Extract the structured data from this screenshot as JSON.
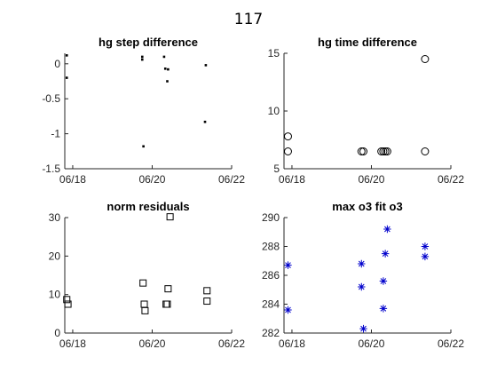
{
  "figure": {
    "suptitle": "117"
  },
  "chart_data": [
    {
      "type": "scatter",
      "title": "hg step difference",
      "xlabel": "",
      "ylabel": "",
      "x_axis": "date",
      "xlim": [
        "06/17.8",
        "06/22"
      ],
      "xticks": [
        [
          "06/18",
          18
        ],
        [
          "06/20",
          20
        ],
        [
          "06/22",
          22
        ]
      ],
      "ylim": [
        -1.5,
        0.15
      ],
      "yticks": [
        0,
        -0.5,
        -1,
        -1.5
      ],
      "ytick_labels": [
        "0",
        "-0.5",
        "-1",
        "-1.5"
      ],
      "grid": false,
      "marker": "point",
      "color": "#000000",
      "points": [
        [
          17.85,
          0.12
        ],
        [
          17.85,
          -0.2
        ],
        [
          19.75,
          0.1
        ],
        [
          19.75,
          0.06
        ],
        [
          19.78,
          -1.18
        ],
        [
          20.3,
          0.1
        ],
        [
          20.33,
          -0.07
        ],
        [
          20.4,
          -0.08
        ],
        [
          20.38,
          -0.25
        ],
        [
          21.35,
          -0.02
        ],
        [
          21.33,
          -0.83
        ]
      ]
    },
    {
      "type": "scatter",
      "title": "hg time difference",
      "xlabel": "",
      "ylabel": "",
      "x_axis": "date",
      "xlim": [
        17.8,
        22
      ],
      "xticks": [
        [
          "06/18",
          18
        ],
        [
          "06/20",
          20
        ],
        [
          "06/22",
          22
        ]
      ],
      "ylim": [
        5,
        15
      ],
      "yticks": [
        5,
        10,
        15
      ],
      "ytick_labels": [
        "5",
        "10",
        "15"
      ],
      "grid": false,
      "marker": "circle",
      "color": "#000000",
      "points": [
        [
          17.9,
          7.8
        ],
        [
          17.9,
          6.5
        ],
        [
          19.75,
          6.5
        ],
        [
          19.8,
          6.5
        ],
        [
          20.25,
          6.5
        ],
        [
          20.3,
          6.5
        ],
        [
          20.35,
          6.5
        ],
        [
          20.4,
          6.5
        ],
        [
          21.35,
          14.5
        ],
        [
          21.35,
          6.5
        ]
      ]
    },
    {
      "type": "scatter",
      "title": "norm residuals",
      "xlabel": "",
      "ylabel": "",
      "x_axis": "date",
      "xlim": [
        17.8,
        22
      ],
      "xticks": [
        [
          "06/18",
          18
        ],
        [
          "06/20",
          20
        ],
        [
          "06/22",
          22
        ]
      ],
      "ylim": [
        0,
        30
      ],
      "yticks": [
        0,
        10,
        20,
        30
      ],
      "ytick_labels": [
        "0",
        "10",
        "20",
        "30"
      ],
      "grid": false,
      "marker": "square",
      "color": "#000000",
      "points": [
        [
          17.85,
          8.7
        ],
        [
          17.88,
          7.5
        ],
        [
          19.77,
          13
        ],
        [
          19.8,
          7.5
        ],
        [
          19.82,
          5.8
        ],
        [
          20.35,
          7.5
        ],
        [
          20.38,
          7.5
        ],
        [
          20.4,
          11.5
        ],
        [
          20.45,
          30.2
        ],
        [
          21.38,
          11
        ],
        [
          21.38,
          8.3
        ]
      ]
    },
    {
      "type": "scatter",
      "title": "max o3 fit o3",
      "xlabel": "",
      "ylabel": "",
      "x_axis": "date",
      "xlim": [
        17.8,
        22
      ],
      "xticks": [
        [
          "06/18",
          18
        ],
        [
          "06/20",
          20
        ],
        [
          "06/22",
          22
        ]
      ],
      "ylim": [
        282,
        290
      ],
      "yticks": [
        282,
        284,
        286,
        288,
        290
      ],
      "ytick_labels": [
        "282",
        "284",
        "286",
        "288",
        "290"
      ],
      "grid": false,
      "marker": "asterisk",
      "color": "#0000cc",
      "points": [
        [
          17.9,
          286.7
        ],
        [
          17.9,
          283.6
        ],
        [
          19.75,
          286.8
        ],
        [
          19.75,
          285.2
        ],
        [
          19.8,
          282.3
        ],
        [
          20.3,
          285.6
        ],
        [
          20.3,
          283.7
        ],
        [
          20.35,
          287.5
        ],
        [
          20.4,
          289.2
        ],
        [
          21.35,
          288
        ],
        [
          21.35,
          287.3
        ]
      ]
    }
  ]
}
